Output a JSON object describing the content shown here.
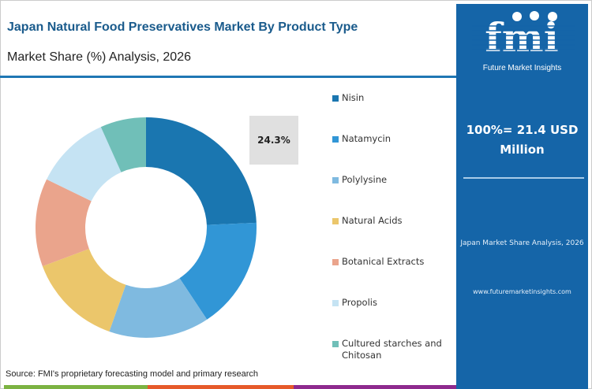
{
  "header": {
    "title": "Japan Natural Food Preservatives Market By Product Type",
    "subtitle": "Market Share (%) Analysis, 2026"
  },
  "brand": {
    "logo_text": "fmi",
    "logo_subtext": "Future Market Insights",
    "url": "www.futuremarketinsights.com",
    "panel_color": "#1565a8"
  },
  "side": {
    "total": "100%= 21.4 USD Million",
    "caption": "Japan Market Share Analysis, 2026"
  },
  "source": "Source: FMI's proprietary forecasting model and primary research",
  "chart_data": {
    "type": "pie",
    "donut": true,
    "categories": [
      "Nisin",
      "Natamycin",
      "Polylysine",
      "Natural Acids",
      "Botanical Extracts",
      "Propolis",
      "Cultured starches and Chitosan"
    ],
    "values": [
      24.3,
      16.4,
      14.7,
      13.9,
      12.9,
      11.1,
      6.7
    ],
    "colors": [
      "#1a76b0",
      "#3196d6",
      "#7fbae0",
      "#ebc66b",
      "#eaa48c",
      "#c5e3f3",
      "#70bfb8"
    ],
    "data_labels": [
      {
        "category": "Nisin",
        "text": "24.3%"
      }
    ],
    "legend_placement": "right"
  },
  "footer_colors": [
    "#7cb342",
    "#e65a2a",
    "#8e2a8e"
  ]
}
